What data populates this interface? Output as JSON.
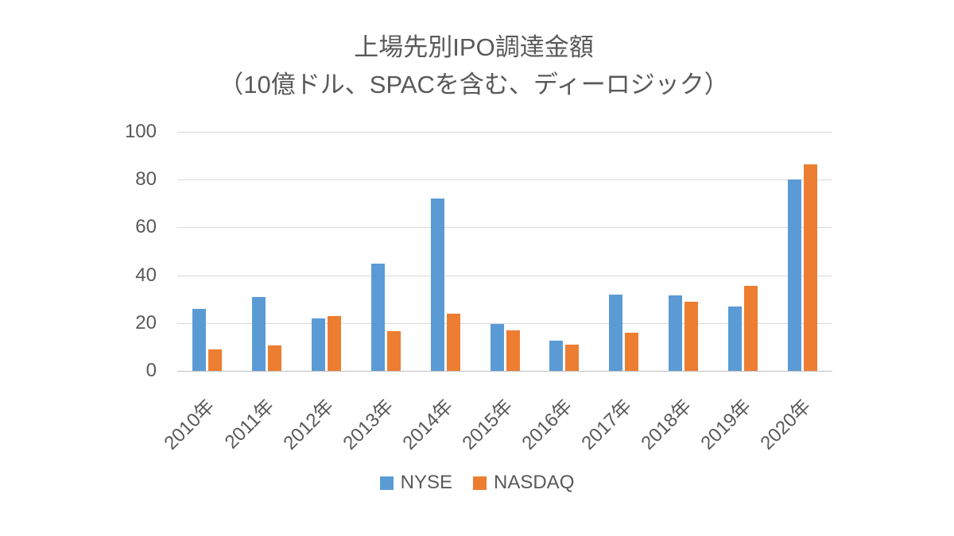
{
  "title": {
    "line1": "上場先別IPO調達金額",
    "line2": "（10億ドル、SPACを含む、ディーロジック）"
  },
  "chart_data": {
    "type": "bar",
    "title": "上場先別IPO調達金額（10億ドル、SPACを含む、ディーロジック）",
    "categories": [
      "2010年",
      "2011年",
      "2012年",
      "2013年",
      "2014年",
      "2015年",
      "2016年",
      "2017年",
      "2018年",
      "2019年",
      "2020年"
    ],
    "series": [
      {
        "name": "NYSE",
        "color": "#5B9BD5",
        "values": [
          26,
          31,
          22,
          45,
          72,
          19.5,
          12.5,
          32,
          31.5,
          27,
          80
        ]
      },
      {
        "name": "NASDAQ",
        "color": "#ED7D31",
        "values": [
          9,
          10.5,
          23,
          16.5,
          24,
          17,
          11,
          16,
          29,
          35.5,
          86.5
        ]
      }
    ],
    "xlabel": "",
    "ylabel": "",
    "ylim": [
      0,
      100
    ],
    "yticks": [
      0,
      20,
      40,
      60,
      80,
      100
    ],
    "grid": true,
    "legend_position": "bottom"
  },
  "colors": {
    "text": "#595959",
    "gridline": "#D9D9D9",
    "axis_line": "#BFBFBF",
    "background": "#FFFFFF",
    "nyse": "#5B9BD5",
    "nasdaq": "#ED7D31"
  }
}
